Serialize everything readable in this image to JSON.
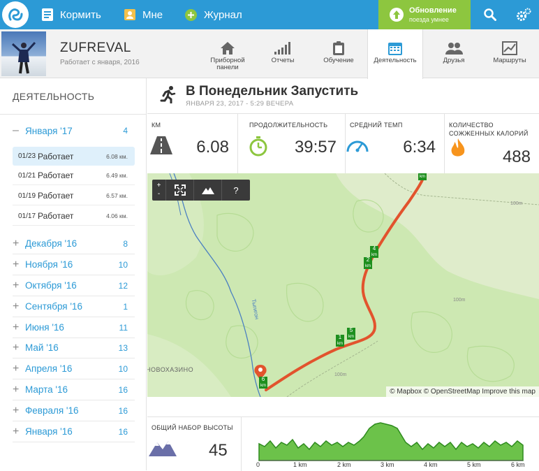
{
  "nav": {
    "feed": "Кормить",
    "me": "Мне",
    "journal": "Журнал"
  },
  "upgrade": {
    "title": "Обновление",
    "subtitle": "поезда умнее"
  },
  "profile": {
    "name": "ZUFREVAL",
    "since": "Работает с января, 2016"
  },
  "tabs": [
    {
      "label": "Приборной панели"
    },
    {
      "label": "Отчеты"
    },
    {
      "label": "Обучение"
    },
    {
      "label": "Деятельность"
    },
    {
      "label": "Друзья"
    },
    {
      "label": "Маршруты"
    }
  ],
  "sidebar": {
    "title": "ДЕЯТЕЛЬНОСТЬ",
    "current_month": {
      "label": "Января '17",
      "count": "4"
    },
    "activities": [
      {
        "date": "01/23",
        "type": "Работает",
        "dist": "6.08 км."
      },
      {
        "date": "01/21",
        "type": "Работает",
        "dist": "6.49 км."
      },
      {
        "date": "01/19",
        "type": "Работает",
        "dist": "6.57 км."
      },
      {
        "date": "01/17",
        "type": "Работает",
        "dist": "4.06 км."
      }
    ],
    "months": [
      {
        "label": "Декабря '16",
        "count": "8"
      },
      {
        "label": "Ноября '16",
        "count": "10"
      },
      {
        "label": "Октября '16",
        "count": "12"
      },
      {
        "label": "Сентября '16",
        "count": "1"
      },
      {
        "label": "Июня '16",
        "count": "11"
      },
      {
        "label": "Май '16",
        "count": "13"
      },
      {
        "label": "Апреля '16",
        "count": "10"
      },
      {
        "label": "Марта '16",
        "count": "16"
      },
      {
        "label": "Февраля '16",
        "count": "16"
      },
      {
        "label": "Января '16",
        "count": "16"
      }
    ]
  },
  "activity": {
    "title": "В Понедельник Запустить",
    "date": "ЯНВАРЯ 23, 2017 - 5:29 ВЕЧЕРА",
    "stats": {
      "km_label": "КМ",
      "km": "6.08",
      "duration_label": "ПРОДОЛЖИТЕЛЬНОСТЬ",
      "duration": "39:57",
      "pace_label": "СРЕДНИЙ ТЕМП",
      "pace": "6:34",
      "cal_label1": "КОЛИЧЕСТВО",
      "cal_label2": "СОЖЖЕННЫХ КАЛОРИЙ",
      "calories": "488"
    }
  },
  "map": {
    "controls": {
      "zoom_in": "+",
      "zoom_out": "-",
      "help": "?"
    },
    "attribution": "© Mapbox © OpenStreetMap Improve this map",
    "village": "НОВОХАЗИНО",
    "river": "Тыгигон",
    "km_markers": [
      "1",
      "2",
      "4",
      "5",
      "6"
    ],
    "km_unit": "km",
    "contour_labels": [
      "100m",
      "100m",
      "100m"
    ]
  },
  "elevation": {
    "label": "ОБЩИЙ НАБОР ВЫСОТЫ",
    "value": "45",
    "x_ticks": [
      "0",
      "1 km",
      "2 km",
      "3 km",
      "4 km",
      "5 km",
      "6 km"
    ],
    "colors": {
      "fill": "#6cc24a",
      "stroke": "#2e8b1e"
    }
  },
  "colors": {
    "primary": "#2c9ad6",
    "upgrade": "#8dc63f",
    "route": "#e2532d"
  }
}
